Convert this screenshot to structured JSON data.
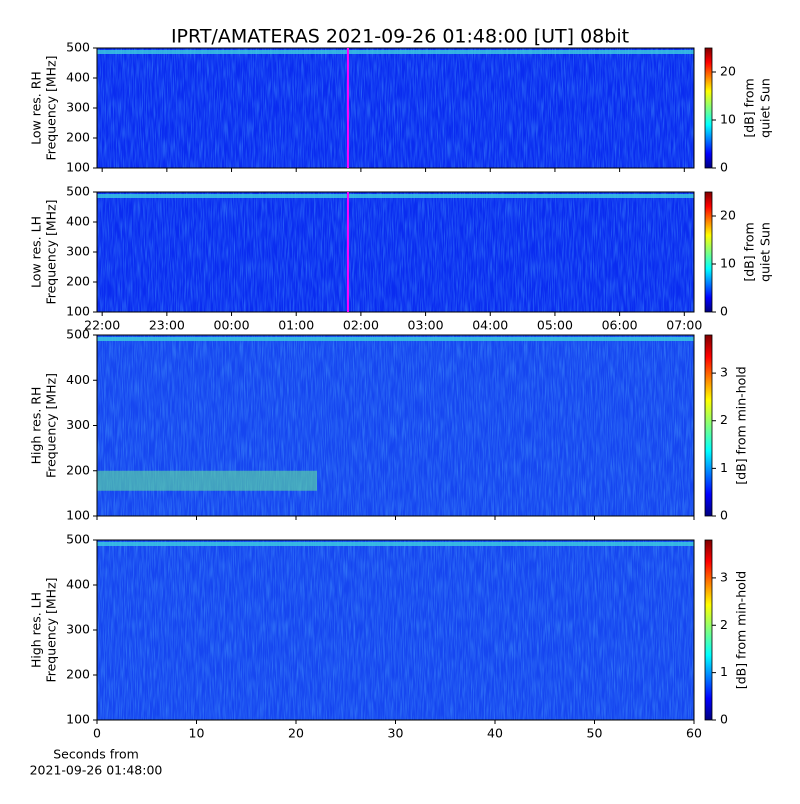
{
  "title": "IPRT/AMATERAS 2021-09-26 01:48:00 [UT]   08bit",
  "chart_data": [
    {
      "type": "spectrogram",
      "y_label": [
        "Low res. RH",
        "Frequency [MHz]"
      ],
      "colorbar_label": [
        "[dB] from",
        "quiet Sun"
      ],
      "xlim": [
        21.92,
        31.15
      ],
      "xticks": [
        22,
        23,
        24,
        25,
        26,
        27,
        28,
        29,
        30,
        31
      ],
      "xtick_labels": false,
      "ylim": [
        100,
        500
      ],
      "yticks": [
        100,
        200,
        300,
        400,
        500
      ],
      "clim": [
        0,
        25
      ],
      "cticks": [
        0,
        10,
        20
      ],
      "marker_x": 25.8,
      "marker_color": "#ff00ff"
    },
    {
      "type": "spectrogram",
      "y_label": [
        "Low res. LH",
        "Frequency [MHz]"
      ],
      "colorbar_label": [
        "[dB] from",
        "quiet Sun"
      ],
      "xlim": [
        21.92,
        31.15
      ],
      "xticks": [
        {
          "value": 22,
          "label": "22:00"
        },
        {
          "value": 23,
          "label": "23:00"
        },
        {
          "value": 24,
          "label": "00:00"
        },
        {
          "value": 25,
          "label": "01:00"
        },
        {
          "value": 26,
          "label": "02:00"
        },
        {
          "value": 27,
          "label": "03:00"
        },
        {
          "value": 28,
          "label": "04:00"
        },
        {
          "value": 29,
          "label": "05:00"
        },
        {
          "value": 30,
          "label": "06:00"
        },
        {
          "value": 31,
          "label": "07:00"
        }
      ],
      "xtick_labels": true,
      "ylim": [
        100,
        500
      ],
      "yticks": [
        100,
        200,
        300,
        400,
        500
      ],
      "clim": [
        0,
        25
      ],
      "cticks": [
        0,
        10,
        20
      ],
      "marker_x": 25.8,
      "marker_color": "#ff00ff"
    },
    {
      "type": "spectrogram",
      "y_label": [
        "High res. RH",
        "Frequency [MHz]"
      ],
      "colorbar_label": [
        "[dB] from min-hold"
      ],
      "xlim": [
        0,
        60
      ],
      "xticks": [
        0,
        10,
        20,
        30,
        40,
        50,
        60
      ],
      "xtick_labels": false,
      "ylim": [
        100,
        500
      ],
      "yticks": [
        100,
        200,
        300,
        400,
        500
      ],
      "clim": [
        0,
        3.8
      ],
      "cticks": [
        0,
        1,
        2,
        3
      ]
    },
    {
      "type": "spectrogram",
      "y_label": [
        "High res. LH",
        "Frequency [MHz]"
      ],
      "colorbar_label": [
        "[dB] from min-hold"
      ],
      "xlim": [
        0,
        60
      ],
      "xticks": [
        0,
        10,
        20,
        30,
        40,
        50,
        60
      ],
      "xtick_labels": true,
      "ylim": [
        100,
        500
      ],
      "yticks": [
        100,
        200,
        300,
        400,
        500
      ],
      "clim": [
        0,
        3.8
      ],
      "cticks": [
        0,
        1,
        2,
        3
      ],
      "x_label": [
        "Seconds from",
        "2021-09-26 01:48:00"
      ]
    }
  ]
}
